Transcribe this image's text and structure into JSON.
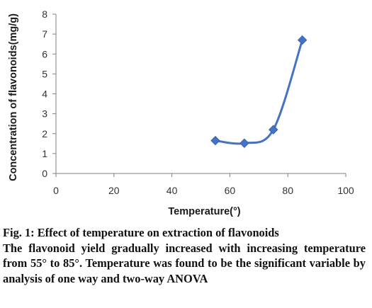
{
  "chart_data": {
    "type": "scatter",
    "subtype": "smooth-line-with-markers",
    "xlabel": "Temperature(°)",
    "ylabel": "Concentration of flavonoids(mg/g)",
    "xlim": [
      0,
      100
    ],
    "ylim": [
      0,
      8
    ],
    "xticks": [
      "0",
      "20",
      "40",
      "60",
      "80",
      "100"
    ],
    "yticks": [
      "0",
      "1",
      "2",
      "3",
      "4",
      "5",
      "6",
      "7",
      "8"
    ],
    "grid": false,
    "legend": "none",
    "series": [
      {
        "color": "#4472C4",
        "marker": "diamond",
        "points": [
          {
            "x": 55,
            "y": 1.65
          },
          {
            "x": 65,
            "y": 1.52
          },
          {
            "x": 75,
            "y": 2.2
          },
          {
            "x": 85,
            "y": 6.7
          }
        ]
      }
    ]
  },
  "caption": {
    "title": "Fig. 1: Effect of temperature on extraction of flavonoids",
    "description": "The flavonoid yield gradually increased with increasing temperature from 55° to 85°. Temperature was found to be the significant variable by analysis of one way and two-way ANOVA"
  },
  "colors": {
    "series": "#4472C4",
    "axis": "#7f7f7f"
  }
}
